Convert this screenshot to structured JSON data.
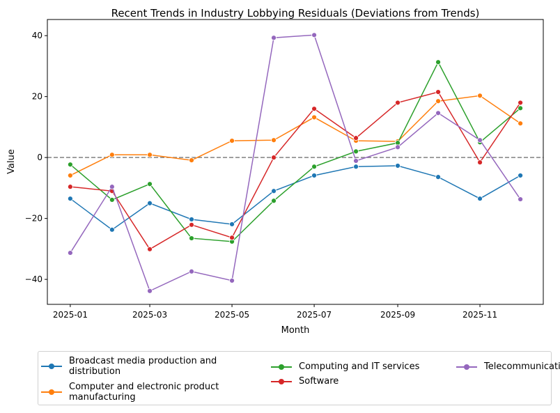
{
  "chart_data": {
    "type": "line",
    "title": "Recent Trends in Industry Lobbying Residuals (Deviations from Trends)",
    "xlabel": "Month",
    "ylabel": "Value",
    "x": [
      "2025-01-01",
      "2025-02-01",
      "2025-03-01",
      "2025-04-01",
      "2025-05-01",
      "2025-06-01",
      "2025-07-01",
      "2025-08-01",
      "2025-09-01",
      "2025-10-01",
      "2025-11-01",
      "2025-12-01"
    ],
    "xticks": [
      "2025-01",
      "2025-03",
      "2025-05",
      "2025-07",
      "2025-09",
      "2025-11"
    ],
    "yticks": [
      -40,
      -20,
      0,
      20,
      40
    ],
    "xlim": [
      "2024-12-15",
      "2025-12-18"
    ],
    "ylim": [
      -48.2,
      45.3
    ],
    "reference_line": {
      "y": 0,
      "style": "dashed",
      "color": "#808080"
    },
    "grid": false,
    "legend_placement": "bottom",
    "series": [
      {
        "name": "Broadcast media production and distribution",
        "color": "#1f77b4",
        "values": [
          -13.5,
          -23.7,
          -15,
          -20.3,
          -21.9,
          -11,
          -5.9,
          -3,
          -2.7,
          -6.4,
          -13.5,
          -5.9
        ]
      },
      {
        "name": "Computer and electronic product manufacturing",
        "color": "#ff7f0e",
        "values": [
          -5.9,
          0.9,
          0.9,
          -0.9,
          5.5,
          5.7,
          13.2,
          5.5,
          5.3,
          18.5,
          20.3,
          11.2
        ]
      },
      {
        "name": "Computing and IT services",
        "color": "#2ca02c",
        "values": [
          -2.3,
          -13.9,
          -8.7,
          -26.5,
          -27.6,
          -14.2,
          -3,
          2,
          4.8,
          31.3,
          5,
          16.2
        ]
      },
      {
        "name": "Software",
        "color": "#d62728",
        "values": [
          -9.6,
          -11,
          -30.1,
          -22.1,
          -26.3,
          0,
          16,
          6.4,
          18,
          21.5,
          -1.6,
          18
        ]
      },
      {
        "name": "Telecommunications",
        "color": "#9467bd",
        "values": [
          -31.3,
          -9.6,
          -43.8,
          -37.4,
          -40.4,
          39.3,
          40.2,
          -1.1,
          3.4,
          14.6,
          5.7,
          -13.7
        ]
      }
    ]
  }
}
